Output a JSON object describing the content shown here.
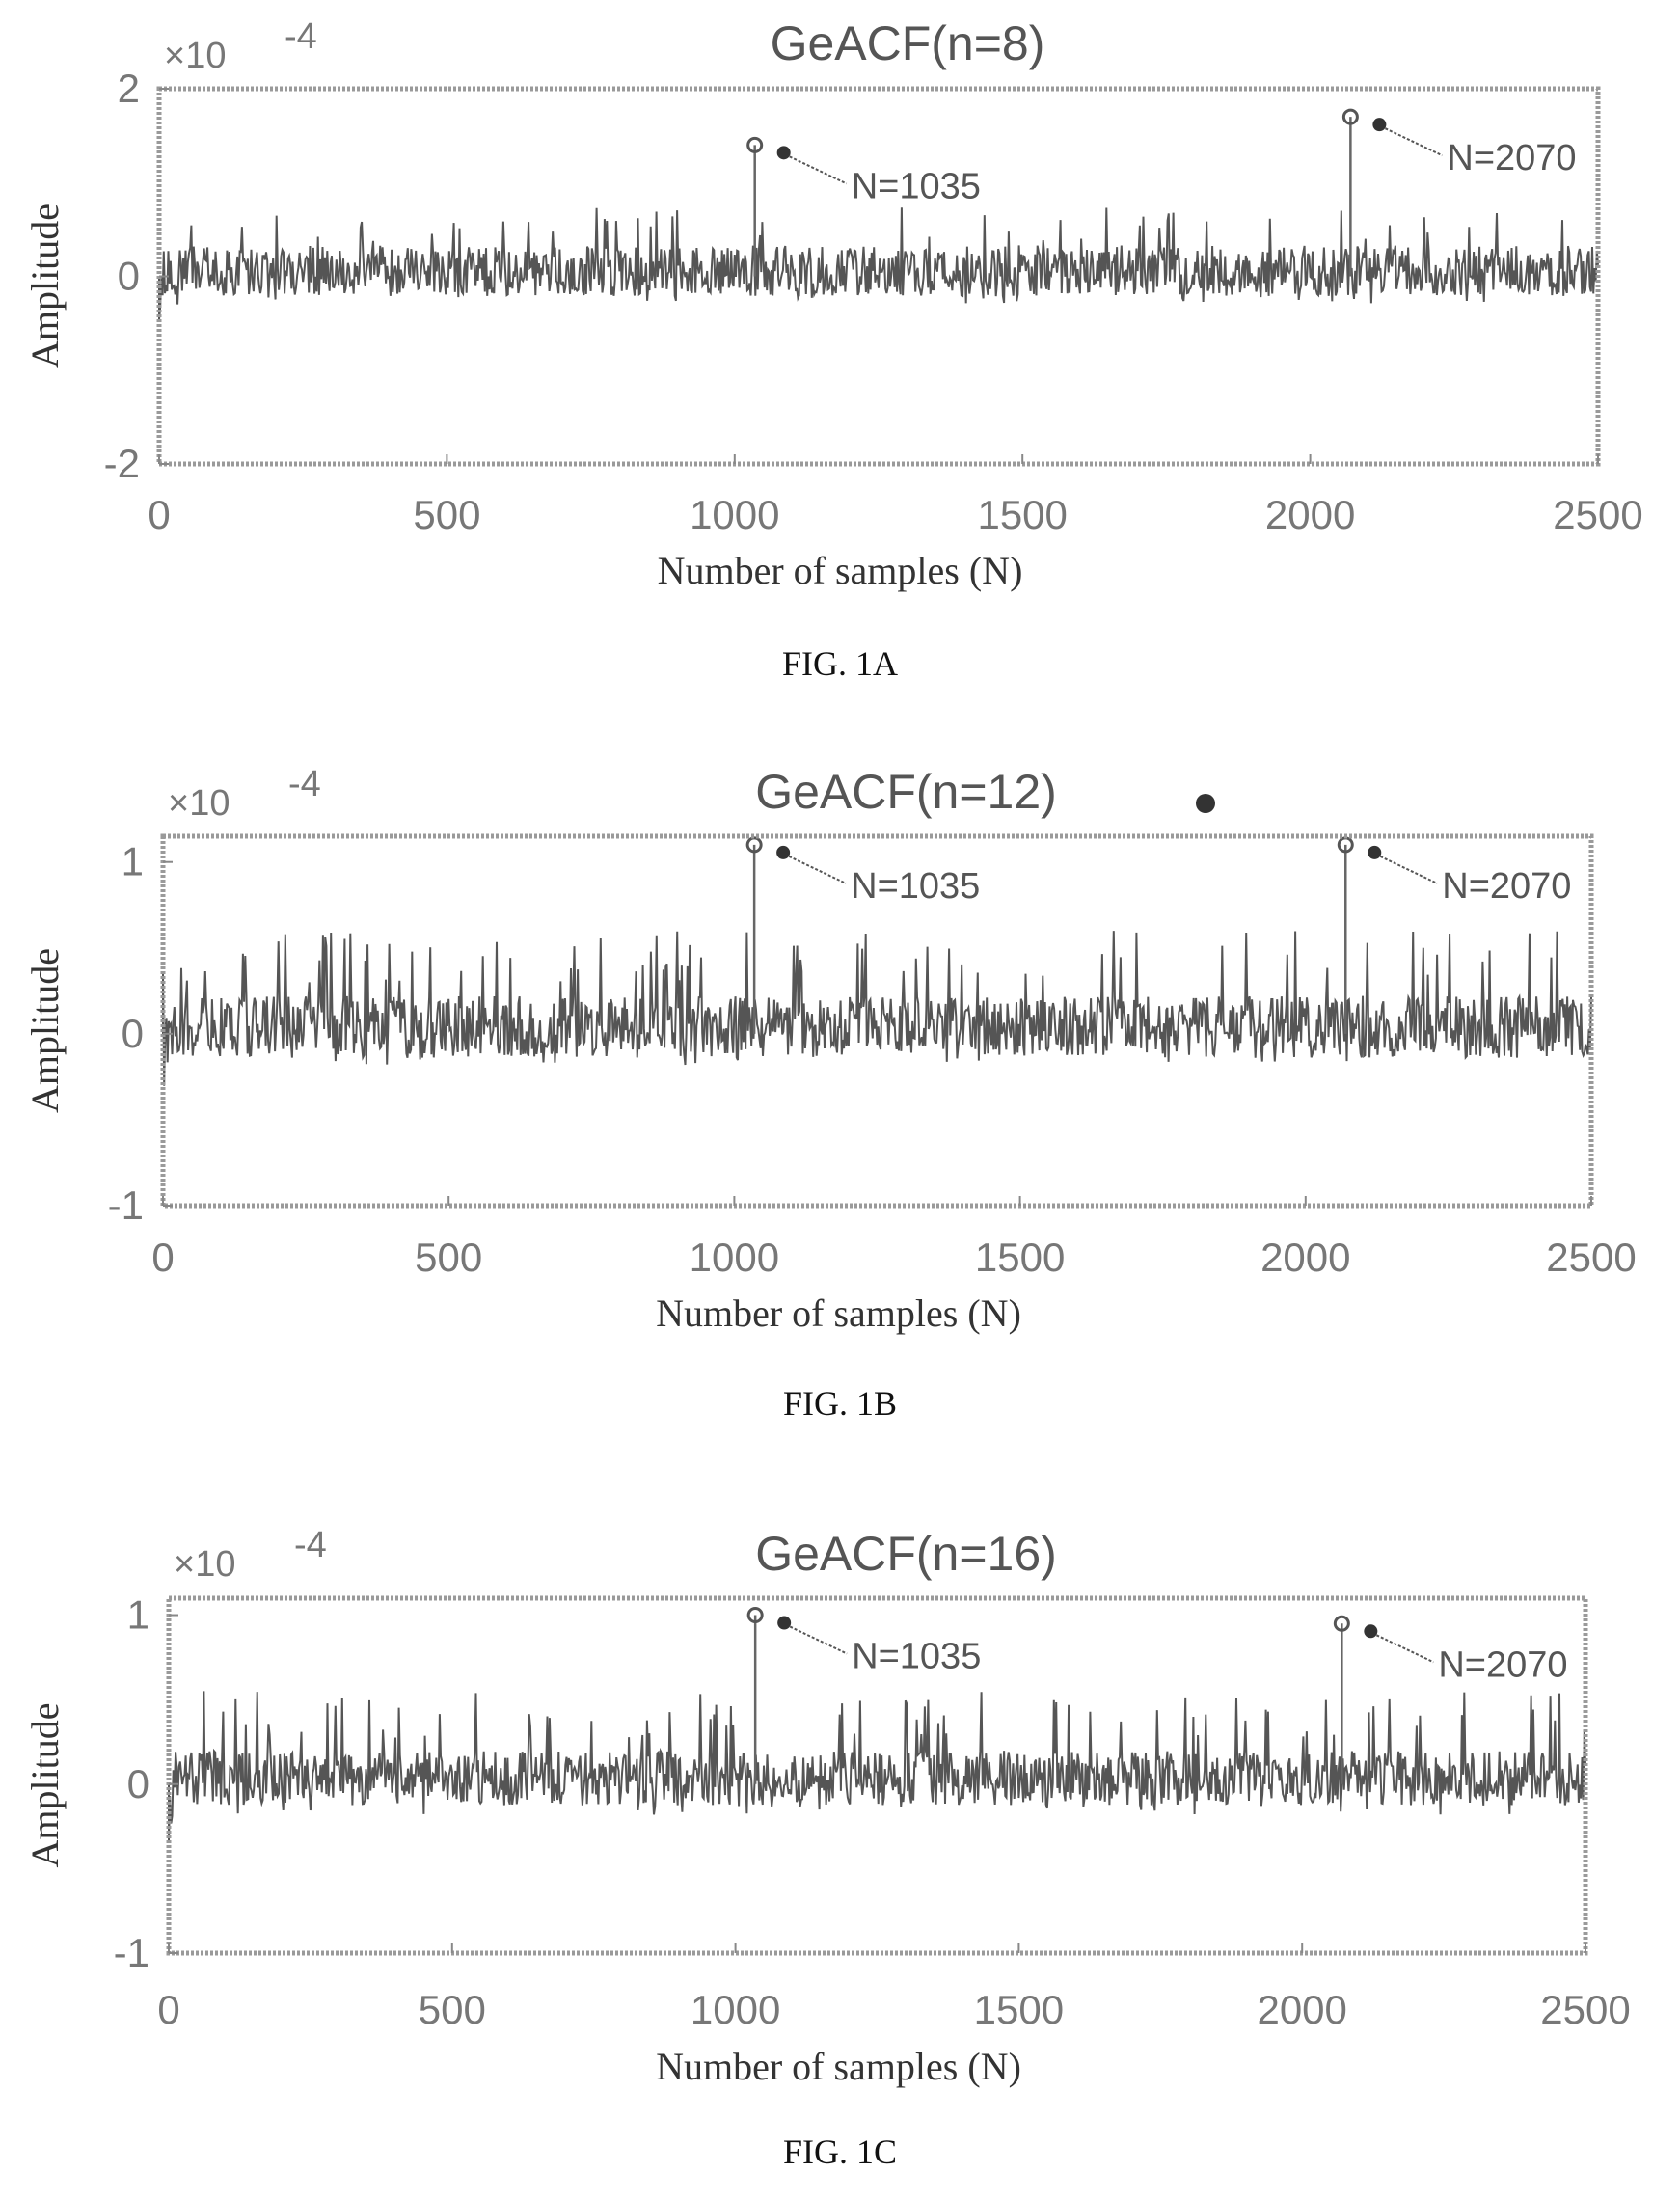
{
  "chart_data": [
    {
      "type": "line",
      "title": "GeACF(n=8)",
      "xlabel": "Number of samples (N)",
      "ylabel": "Amplitude",
      "exponent_label": "×10",
      "exponent": "-4",
      "xlim": [
        0,
        2500
      ],
      "ylim": [
        -2,
        2
      ],
      "xticks": [
        "0",
        "500",
        "1000",
        "1500",
        "2000",
        "2500"
      ],
      "yticks": [
        "2",
        "0",
        "-2"
      ],
      "yticks_values": [
        2,
        0,
        -2
      ],
      "peaks": [
        {
          "x": 1035,
          "y": 1.4,
          "label": "N=1035"
        },
        {
          "x": 2070,
          "y": 1.7,
          "label": "N=2070"
        }
      ],
      "noise_level": 0.3,
      "spike_level": 0.75,
      "caption": "FIG. 1A"
    },
    {
      "type": "line",
      "title": "GeACF(n=12)",
      "xlabel": "Number of samples (N)",
      "ylabel": "Amplitude",
      "exponent_label": "×10",
      "exponent": "-4",
      "xlim": [
        0,
        2500
      ],
      "ylim": [
        -1,
        1.15
      ],
      "xticks": [
        "0",
        "500",
        "1000",
        "1500",
        "2000",
        "2500"
      ],
      "yticks": [
        "1",
        "0",
        "-1"
      ],
      "yticks_values": [
        1,
        0,
        -1
      ],
      "peaks": [
        {
          "x": 1035,
          "y": 1.1,
          "label": "N=1035"
        },
        {
          "x": 2070,
          "y": 1.1,
          "label": "N=2070"
        }
      ],
      "noise_level": 0.2,
      "spike_level": 0.6,
      "caption": "FIG. 1B"
    },
    {
      "type": "line",
      "title": "GeACF(n=16)",
      "xlabel": "Number of samples (N)",
      "ylabel": "Amplitude",
      "exponent_label": "×10",
      "exponent": "-4",
      "xlim": [
        0,
        2500
      ],
      "ylim": [
        -1,
        1.1
      ],
      "xticks": [
        "0",
        "500",
        "1000",
        "1500",
        "2000",
        "2500"
      ],
      "yticks": [
        "1",
        "0",
        "-1"
      ],
      "yticks_values": [
        1,
        0,
        -1
      ],
      "peaks": [
        {
          "x": 1035,
          "y": 1.0,
          "label": "N=1035"
        },
        {
          "x": 2070,
          "y": 0.95,
          "label": "N=2070"
        }
      ],
      "noise_level": 0.18,
      "spike_level": 0.55,
      "caption": "FIG. 1C"
    }
  ]
}
